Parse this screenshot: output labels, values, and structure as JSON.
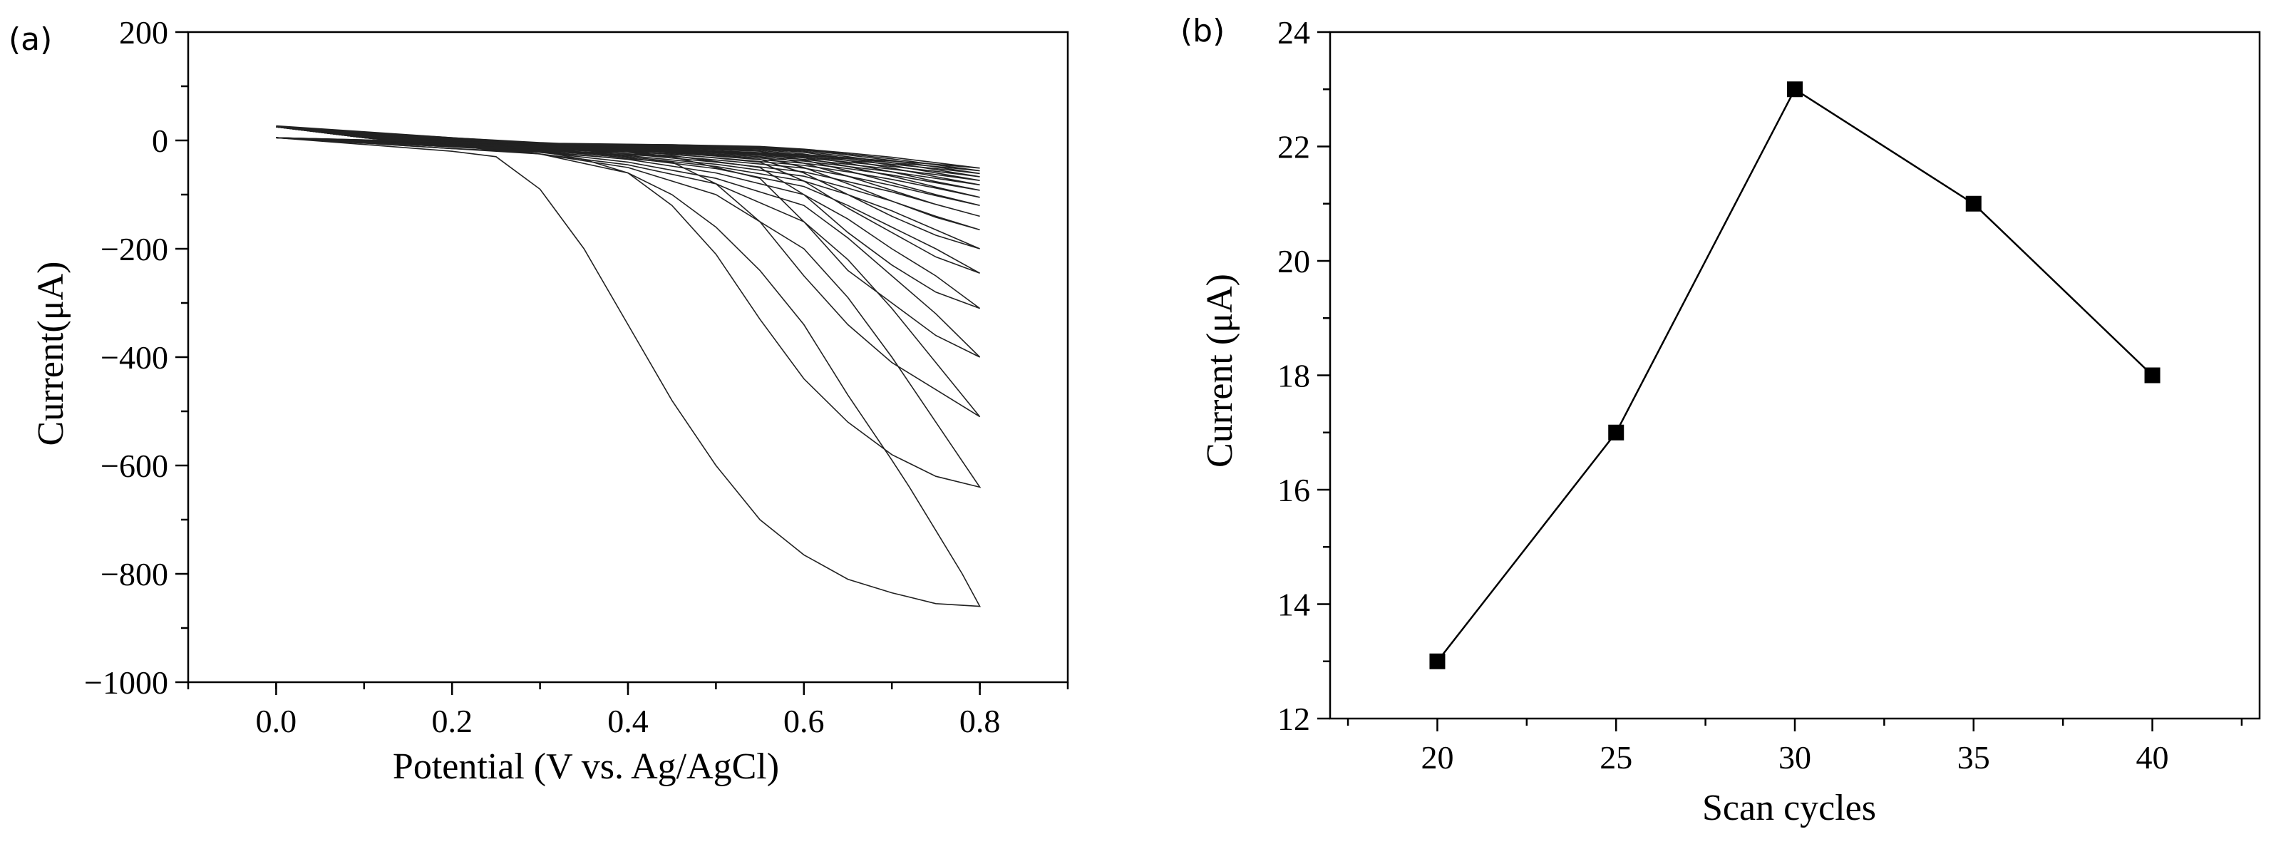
{
  "chart_data": [
    {
      "panel_label": "(a)",
      "type": "line",
      "xlabel": "Potential (V vs. Ag/AgCl)",
      "ylabel": "Current(μA)",
      "xlim": [
        -0.1,
        0.9
      ],
      "ylim": [
        -1000,
        200
      ],
      "xticks": [
        0.0,
        0.2,
        0.4,
        0.6,
        0.8
      ],
      "xtick_labels": [
        "0.0",
        "0.2",
        "0.4",
        "0.6",
        "0.8"
      ],
      "yticks": [
        200,
        0,
        -200,
        -400,
        -600,
        -800,
        -1000
      ],
      "ytick_labels": [
        "200",
        "0",
        "−200",
        "−400",
        "−600",
        "−800",
        "−1000"
      ],
      "grid": false,
      "series": [
        {
          "forward_x": [
            0.0,
            0.2,
            0.25,
            0.3,
            0.35,
            0.4,
            0.45,
            0.5,
            0.55,
            0.6,
            0.65,
            0.7,
            0.75,
            0.8
          ],
          "forward_y": [
            5,
            -20,
            -30,
            -90,
            -200,
            -340,
            -480,
            -600,
            -700,
            -765,
            -810,
            -835,
            -855,
            -860
          ],
          "reverse_x": [
            0.8,
            0.78,
            0.75,
            0.72,
            0.7,
            0.65,
            0.6,
            0.55,
            0.5,
            0.45,
            0.4,
            0.35,
            0.3,
            0.2,
            0.1,
            0.0
          ],
          "reverse_y": [
            -860,
            -800,
            -720,
            -640,
            -590,
            -470,
            -340,
            -240,
            -160,
            -100,
            -60,
            -35,
            -20,
            -5,
            10,
            25
          ]
        },
        {
          "forward_x": [
            0.0,
            0.2,
            0.3,
            0.4,
            0.45,
            0.5,
            0.55,
            0.6,
            0.65,
            0.7,
            0.75,
            0.8
          ],
          "forward_y": [
            5,
            -15,
            -25,
            -60,
            -120,
            -210,
            -330,
            -440,
            -520,
            -580,
            -620,
            -640
          ],
          "reverse_x": [
            0.8,
            0.75,
            0.7,
            0.65,
            0.6,
            0.5,
            0.4,
            0.3,
            0.2,
            0.1,
            0.0
          ],
          "reverse_y": [
            -640,
            -520,
            -400,
            -290,
            -200,
            -100,
            -50,
            -25,
            -10,
            5,
            25
          ]
        },
        {
          "forward_x": [
            0.0,
            0.2,
            0.3,
            0.45,
            0.5,
            0.55,
            0.6,
            0.65,
            0.7,
            0.75,
            0.8
          ],
          "forward_y": [
            5,
            -15,
            -22,
            -40,
            -80,
            -150,
            -250,
            -340,
            -410,
            -460,
            -510
          ],
          "reverse_x": [
            0.8,
            0.75,
            0.7,
            0.65,
            0.6,
            0.5,
            0.4,
            0.3,
            0.2,
            0.1,
            0.0
          ],
          "reverse_y": [
            -510,
            -410,
            -310,
            -220,
            -150,
            -80,
            -45,
            -25,
            -10,
            5,
            25
          ]
        },
        {
          "forward_x": [
            0.0,
            0.2,
            0.3,
            0.45,
            0.55,
            0.6,
            0.65,
            0.7,
            0.75,
            0.8
          ],
          "forward_y": [
            5,
            -12,
            -20,
            -30,
            -70,
            -150,
            -240,
            -300,
            -360,
            -400
          ],
          "reverse_x": [
            0.8,
            0.75,
            0.7,
            0.65,
            0.6,
            0.5,
            0.4,
            0.3,
            0.2,
            0.1,
            0.0
          ],
          "reverse_y": [
            -400,
            -320,
            -250,
            -180,
            -120,
            -70,
            -40,
            -22,
            -10,
            5,
            25
          ]
        },
        {
          "forward_x": [
            0.0,
            0.2,
            0.3,
            0.45,
            0.55,
            0.6,
            0.65,
            0.7,
            0.75,
            0.8
          ],
          "forward_y": [
            5,
            -12,
            -18,
            -28,
            -50,
            -100,
            -170,
            -230,
            -280,
            -310
          ],
          "reverse_x": [
            0.8,
            0.75,
            0.7,
            0.65,
            0.6,
            0.5,
            0.4,
            0.3,
            0.2,
            0.1,
            0.0
          ],
          "reverse_y": [
            -310,
            -250,
            -200,
            -145,
            -100,
            -60,
            -35,
            -20,
            -8,
            5,
            25
          ]
        },
        {
          "forward_x": [
            0.0,
            0.2,
            0.3,
            0.45,
            0.55,
            0.6,
            0.65,
            0.7,
            0.75,
            0.8
          ],
          "forward_y": [
            5,
            -10,
            -16,
            -25,
            -40,
            -75,
            -125,
            -170,
            -215,
            -245
          ],
          "reverse_x": [
            0.8,
            0.75,
            0.7,
            0.65,
            0.6,
            0.5,
            0.4,
            0.3,
            0.2,
            0.1,
            0.0
          ],
          "reverse_y": [
            -245,
            -200,
            -160,
            -120,
            -85,
            -52,
            -32,
            -18,
            -6,
            5,
            25
          ]
        },
        {
          "forward_x": [
            0.0,
            0.2,
            0.3,
            0.45,
            0.55,
            0.6,
            0.65,
            0.7,
            0.75,
            0.8
          ],
          "forward_y": [
            5,
            -10,
            -15,
            -22,
            -35,
            -60,
            -100,
            -140,
            -175,
            -200
          ],
          "reverse_x": [
            0.8,
            0.75,
            0.7,
            0.65,
            0.6,
            0.5,
            0.4,
            0.3,
            0.2,
            0.1,
            0.0
          ],
          "reverse_y": [
            -200,
            -165,
            -130,
            -100,
            -75,
            -48,
            -30,
            -16,
            -5,
            5,
            25
          ]
        },
        {
          "forward_x": [
            0.0,
            0.2,
            0.3,
            0.45,
            0.55,
            0.6,
            0.65,
            0.7,
            0.75,
            0.8
          ],
          "forward_y": [
            5,
            -8,
            -14,
            -20,
            -30,
            -50,
            -80,
            -112,
            -142,
            -165
          ],
          "reverse_x": [
            0.8,
            0.75,
            0.7,
            0.65,
            0.6,
            0.5,
            0.4,
            0.3,
            0.2,
            0.1,
            0.0
          ],
          "reverse_y": [
            -165,
            -140,
            -112,
            -88,
            -66,
            -44,
            -28,
            -15,
            -4,
            6,
            25
          ]
        },
        {
          "forward_x": [
            0.0,
            0.2,
            0.3,
            0.45,
            0.55,
            0.6,
            0.65,
            0.7,
            0.75,
            0.8
          ],
          "forward_y": [
            5,
            -8,
            -12,
            -18,
            -26,
            -42,
            -66,
            -92,
            -118,
            -140
          ],
          "reverse_x": [
            0.8,
            0.75,
            0.7,
            0.65,
            0.6,
            0.5,
            0.4,
            0.3,
            0.2,
            0.1,
            0.0
          ],
          "reverse_y": [
            -140,
            -118,
            -95,
            -76,
            -58,
            -40,
            -25,
            -13,
            -3,
            7,
            25
          ]
        },
        {
          "forward_x": [
            0.0,
            0.2,
            0.3,
            0.45,
            0.55,
            0.6,
            0.65,
            0.7,
            0.75,
            0.8
          ],
          "forward_y": [
            5,
            -7,
            -11,
            -16,
            -23,
            -36,
            -56,
            -78,
            -100,
            -120
          ],
          "reverse_x": [
            0.8,
            0.75,
            0.7,
            0.65,
            0.6,
            0.5,
            0.4,
            0.3,
            0.2,
            0.1,
            0.0
          ],
          "reverse_y": [
            -120,
            -102,
            -83,
            -66,
            -51,
            -36,
            -22,
            -12,
            -2,
            8,
            25
          ]
        },
        {
          "forward_x": [
            0.0,
            0.2,
            0.3,
            0.45,
            0.55,
            0.6,
            0.65,
            0.7,
            0.75,
            0.8
          ],
          "forward_y": [
            5,
            -6,
            -10,
            -14,
            -20,
            -32,
            -48,
            -66,
            -86,
            -105
          ],
          "reverse_x": [
            0.8,
            0.75,
            0.7,
            0.65,
            0.6,
            0.5,
            0.4,
            0.3,
            0.2,
            0.1,
            0.0
          ],
          "reverse_y": [
            -105,
            -88,
            -72,
            -58,
            -46,
            -32,
            -20,
            -10,
            -1,
            9,
            25
          ]
        },
        {
          "forward_x": [
            0.0,
            0.2,
            0.3,
            0.45,
            0.55,
            0.6,
            0.65,
            0.7,
            0.75,
            0.8
          ],
          "forward_y": [
            5,
            -6,
            -9,
            -13,
            -18,
            -28,
            -42,
            -58,
            -76,
            -92
          ],
          "reverse_x": [
            0.8,
            0.75,
            0.7,
            0.65,
            0.6,
            0.5,
            0.4,
            0.3,
            0.2,
            0.1,
            0.0
          ],
          "reverse_y": [
            -92,
            -78,
            -64,
            -52,
            -42,
            -29,
            -18,
            -9,
            0,
            10,
            25
          ]
        },
        {
          "forward_x": [
            0.0,
            0.2,
            0.3,
            0.45,
            0.55,
            0.6,
            0.65,
            0.7,
            0.75,
            0.8
          ],
          "forward_y": [
            5,
            -5,
            -8,
            -12,
            -16,
            -25,
            -37,
            -51,
            -67,
            -82
          ],
          "reverse_x": [
            0.8,
            0.75,
            0.7,
            0.65,
            0.6,
            0.5,
            0.4,
            0.3,
            0.2,
            0.1,
            0.0
          ],
          "reverse_y": [
            -82,
            -70,
            -58,
            -48,
            -38,
            -27,
            -16,
            -8,
            1,
            11,
            25
          ]
        },
        {
          "forward_x": [
            0.0,
            0.2,
            0.3,
            0.45,
            0.55,
            0.6,
            0.65,
            0.7,
            0.75,
            0.8
          ],
          "forward_y": [
            5,
            -5,
            -8,
            -11,
            -15,
            -22,
            -33,
            -46,
            -60,
            -74
          ],
          "reverse_x": [
            0.8,
            0.75,
            0.7,
            0.65,
            0.6,
            0.5,
            0.4,
            0.3,
            0.2,
            0.1,
            0.0
          ],
          "reverse_y": [
            -74,
            -63,
            -53,
            -44,
            -35,
            -25,
            -15,
            -7,
            2,
            12,
            25
          ]
        },
        {
          "forward_x": [
            0.0,
            0.2,
            0.3,
            0.45,
            0.55,
            0.6,
            0.65,
            0.7,
            0.75,
            0.8
          ],
          "forward_y": [
            5,
            -4,
            -7,
            -10,
            -14,
            -20,
            -30,
            -41,
            -54,
            -67
          ],
          "reverse_x": [
            0.8,
            0.75,
            0.7,
            0.65,
            0.6,
            0.5,
            0.4,
            0.3,
            0.2,
            0.1,
            0.0
          ],
          "reverse_y": [
            -67,
            -57,
            -48,
            -40,
            -32,
            -23,
            -14,
            -6,
            3,
            13,
            25
          ]
        },
        {
          "forward_x": [
            0.0,
            0.2,
            0.3,
            0.45,
            0.55,
            0.6,
            0.65,
            0.7,
            0.75,
            0.8
          ],
          "forward_y": [
            5,
            -4,
            -6,
            -9,
            -13,
            -18,
            -27,
            -37,
            -49,
            -61
          ],
          "reverse_x": [
            0.8,
            0.75,
            0.7,
            0.65,
            0.6,
            0.5,
            0.4,
            0.3,
            0.2,
            0.1,
            0.0
          ],
          "reverse_y": [
            -61,
            -52,
            -44,
            -37,
            -30,
            -21,
            -13,
            -5,
            4,
            14,
            26
          ]
        },
        {
          "forward_x": [
            0.0,
            0.2,
            0.3,
            0.45,
            0.55,
            0.6,
            0.65,
            0.7,
            0.75,
            0.8
          ],
          "forward_y": [
            5,
            -3,
            -6,
            -8,
            -12,
            -17,
            -25,
            -34,
            -45,
            -56
          ],
          "reverse_x": [
            0.8,
            0.75,
            0.7,
            0.65,
            0.6,
            0.5,
            0.4,
            0.3,
            0.2,
            0.1,
            0.0
          ],
          "reverse_y": [
            -56,
            -48,
            -41,
            -34,
            -28,
            -20,
            -12,
            -5,
            5,
            15,
            26
          ]
        },
        {
          "forward_x": [
            0.0,
            0.2,
            0.3,
            0.45,
            0.55,
            0.6,
            0.65,
            0.7,
            0.75,
            0.8
          ],
          "forward_y": [
            5,
            -3,
            -5,
            -8,
            -11,
            -16,
            -23,
            -31,
            -41,
            -51
          ],
          "reverse_x": [
            0.8,
            0.75,
            0.7,
            0.65,
            0.6,
            0.5,
            0.4,
            0.3,
            0.2,
            0.1,
            0.0
          ],
          "reverse_y": [
            -51,
            -44,
            -38,
            -32,
            -26,
            -19,
            -11,
            -4,
            5,
            16,
            27
          ]
        }
      ]
    },
    {
      "panel_label": "(b)",
      "type": "line",
      "xlabel": "Scan cycles",
      "ylabel": "Current (μA)",
      "xlim": [
        17,
        43
      ],
      "ylim": [
        12,
        24
      ],
      "xticks": [
        20,
        25,
        30,
        35,
        40
      ],
      "xtick_labels": [
        "20",
        "25",
        "30",
        "35",
        "40"
      ],
      "yticks": [
        12,
        14,
        16,
        18,
        20,
        22,
        24
      ],
      "ytick_labels": [
        "12",
        "14",
        "16",
        "18",
        "20",
        "22",
        "24"
      ],
      "grid": false,
      "marker": "square",
      "series": [
        {
          "x": [
            20,
            25,
            30,
            35,
            40
          ],
          "y": [
            13,
            17,
            23,
            21,
            18
          ]
        }
      ]
    }
  ]
}
